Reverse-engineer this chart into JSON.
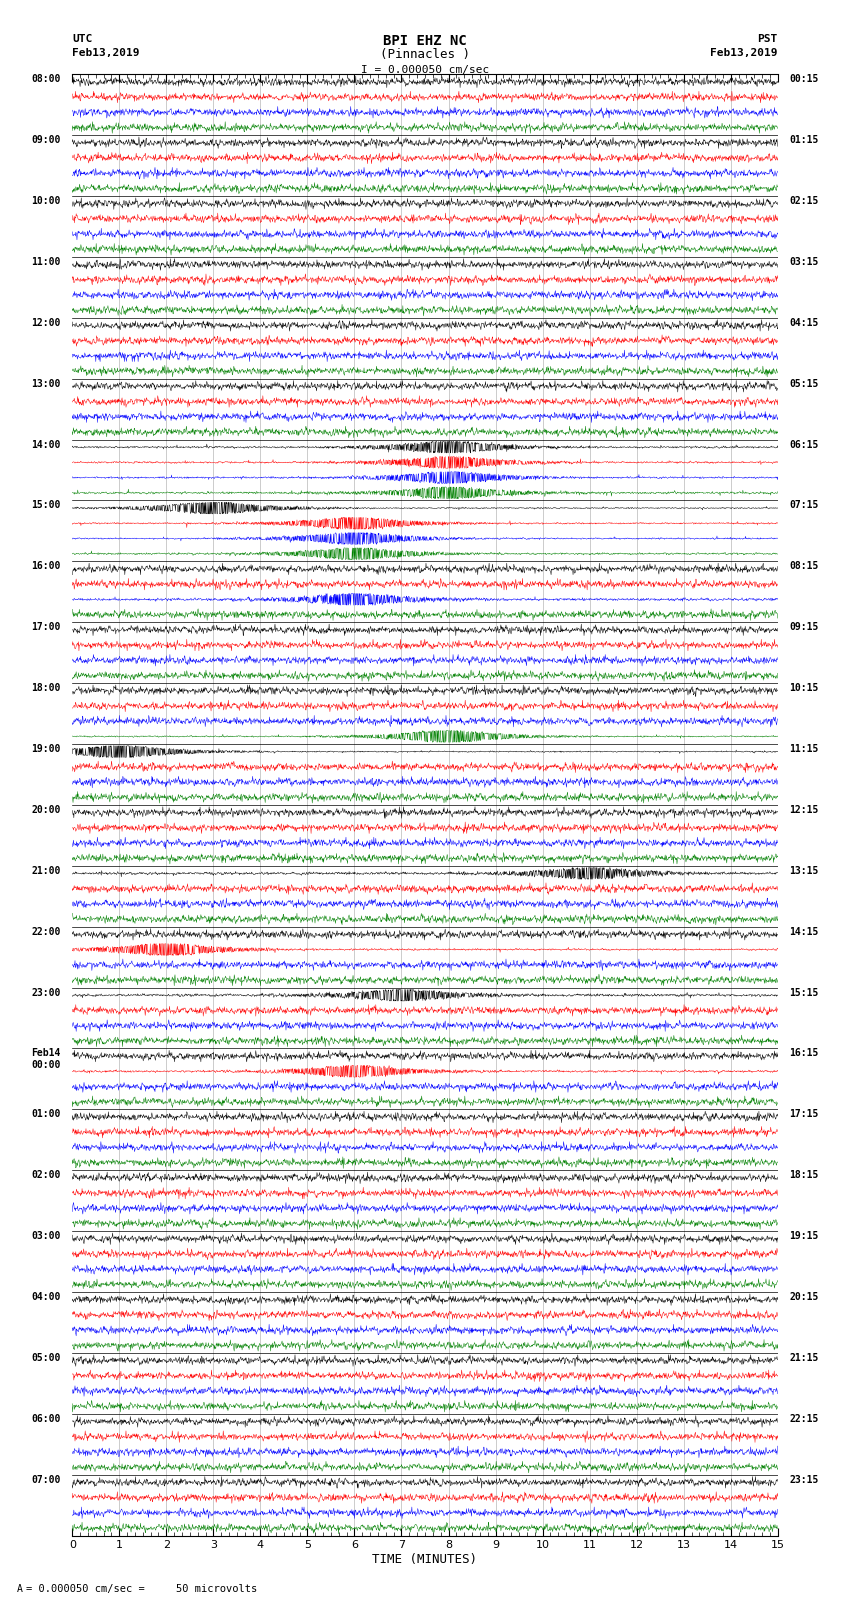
{
  "title_line1": "BPI EHZ NC",
  "title_line2": "(Pinnacles )",
  "scale_label": "I = 0.000050 cm/sec",
  "left_header_line1": "UTC",
  "left_header_line2": "Feb13,2019",
  "right_header_line1": "PST",
  "right_header_line2": "Feb13,2019",
  "xlabel": "TIME (MINUTES)",
  "footer": "= 0.000050 cm/sec =     50 microvolts",
  "utc_times": [
    "08:00",
    "09:00",
    "10:00",
    "11:00",
    "12:00",
    "13:00",
    "14:00",
    "15:00",
    "16:00",
    "17:00",
    "18:00",
    "19:00",
    "20:00",
    "21:00",
    "22:00",
    "23:00",
    "Feb14\n00:00",
    "01:00",
    "02:00",
    "03:00",
    "04:00",
    "05:00",
    "06:00",
    "07:00"
  ],
  "pst_times": [
    "00:15",
    "01:15",
    "02:15",
    "03:15",
    "04:15",
    "05:15",
    "06:15",
    "07:15",
    "08:15",
    "09:15",
    "10:15",
    "11:15",
    "12:15",
    "13:15",
    "14:15",
    "15:15",
    "16:15",
    "17:15",
    "18:15",
    "19:15",
    "20:15",
    "21:15",
    "22:15",
    "23:15"
  ],
  "colors": [
    "black",
    "red",
    "blue",
    "green"
  ],
  "n_hours": 24,
  "traces_per_hour": 4,
  "n_minutes": 15,
  "bg_color": "white",
  "trace_amplitude": 0.38,
  "noise_scale": 0.12,
  "grid_color": "#999999",
  "line_width": 0.35
}
